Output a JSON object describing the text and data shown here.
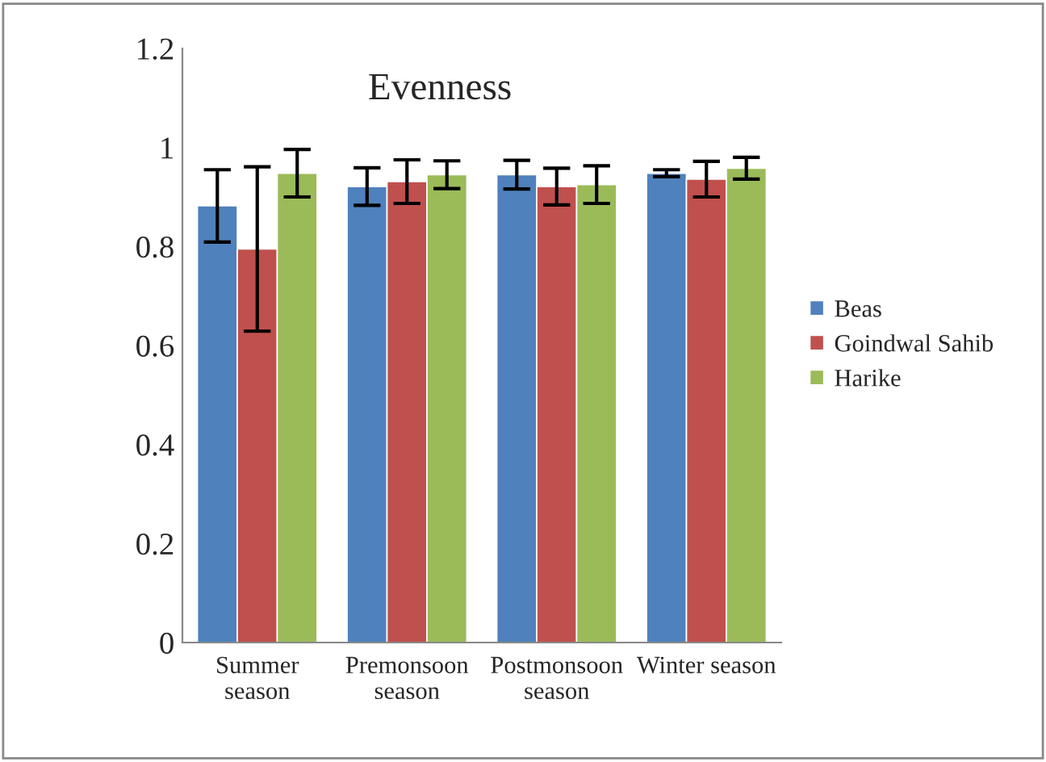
{
  "chart_data": {
    "type": "bar",
    "title": "Evenness",
    "categories": [
      "Summer\nseason",
      "Premonsoon\nseason",
      "Postmonsoon\nseason",
      "Winter season"
    ],
    "series": [
      {
        "name": "Beas",
        "color": "#4f81bd",
        "values": [
          0.882,
          0.921,
          0.945,
          0.948
        ],
        "errors": [
          0.073,
          0.038,
          0.029,
          0.007
        ]
      },
      {
        "name": "Goindwal Sahib",
        "color": "#c0504d",
        "values": [
          0.795,
          0.931,
          0.921,
          0.936
        ],
        "errors": [
          0.166,
          0.044,
          0.037,
          0.036
        ]
      },
      {
        "name": "Harike",
        "color": "#9bbb59",
        "values": [
          0.948,
          0.945,
          0.925,
          0.958
        ],
        "errors": [
          0.048,
          0.028,
          0.038,
          0.022
        ]
      }
    ],
    "ylim": [
      0,
      1.2
    ],
    "yticks": [
      0,
      0.2,
      0.4,
      0.6,
      0.8,
      1,
      1.2
    ],
    "grid": false,
    "legend": "right"
  }
}
